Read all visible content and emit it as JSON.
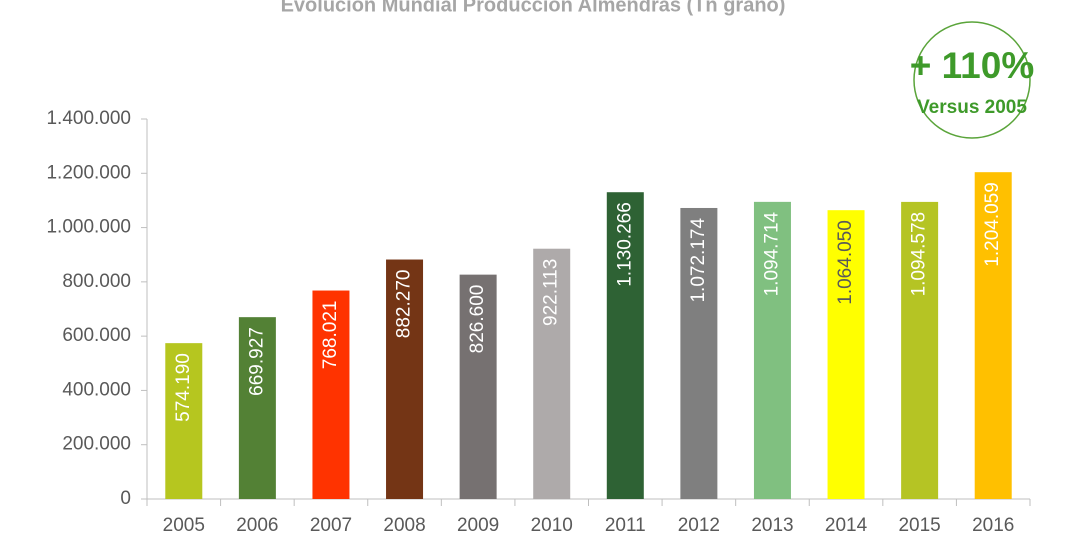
{
  "chart_data": {
    "type": "bar",
    "title": "Evolución Mundial Producción Almendras (Tn grano)",
    "annotation": {
      "main": "+ 110%",
      "sub": "Versus 2005"
    },
    "categories": [
      "2005",
      "2006",
      "2007",
      "2008",
      "2009",
      "2010",
      "2011",
      "2012",
      "2013",
      "2014",
      "2015",
      "2016"
    ],
    "values": [
      574190,
      669927,
      768021,
      882270,
      826600,
      922113,
      1130266,
      1072174,
      1094714,
      1064050,
      1094578,
      1204059
    ],
    "value_labels": [
      "574.190",
      "669.927",
      "768.021",
      "882.270",
      "826.600",
      "922.113",
      "1.130.266",
      "1.072.174",
      "1.094.714",
      "1.064.050",
      "1.094.578",
      "1.204.059"
    ],
    "colors": [
      "#b6c61f",
      "#538135",
      "#ff3300",
      "#743515",
      "#767171",
      "#aeaaaa",
      "#2e6234",
      "#7f7f7f",
      "#80c080",
      "#ffff00",
      "#b5c424",
      "#ffc000"
    ],
    "label_colors": [
      "#ffffff",
      "#ffffff",
      "#ffffff",
      "#ffffff",
      "#ffffff",
      "#ffffff",
      "#ffffff",
      "#ffffff",
      "#ffffff",
      "#595959",
      "#ffffff",
      "#ffffff"
    ],
    "ylim": [
      0,
      1400000
    ],
    "yticks": [
      0,
      {
        "value": 200000,
        "label": "200.000"
      },
      {
        "value": 400000,
        "label": "400.000"
      },
      {
        "value": 600000,
        "label": "600.000"
      },
      {
        "value": 800000,
        "label": "800.000"
      },
      {
        "value": 1000000,
        "label": "1.000.000"
      },
      {
        "value": 1200000,
        "label": "1.200.000"
      },
      {
        "value": 1400000,
        "label": "1.400.000"
      }
    ]
  }
}
